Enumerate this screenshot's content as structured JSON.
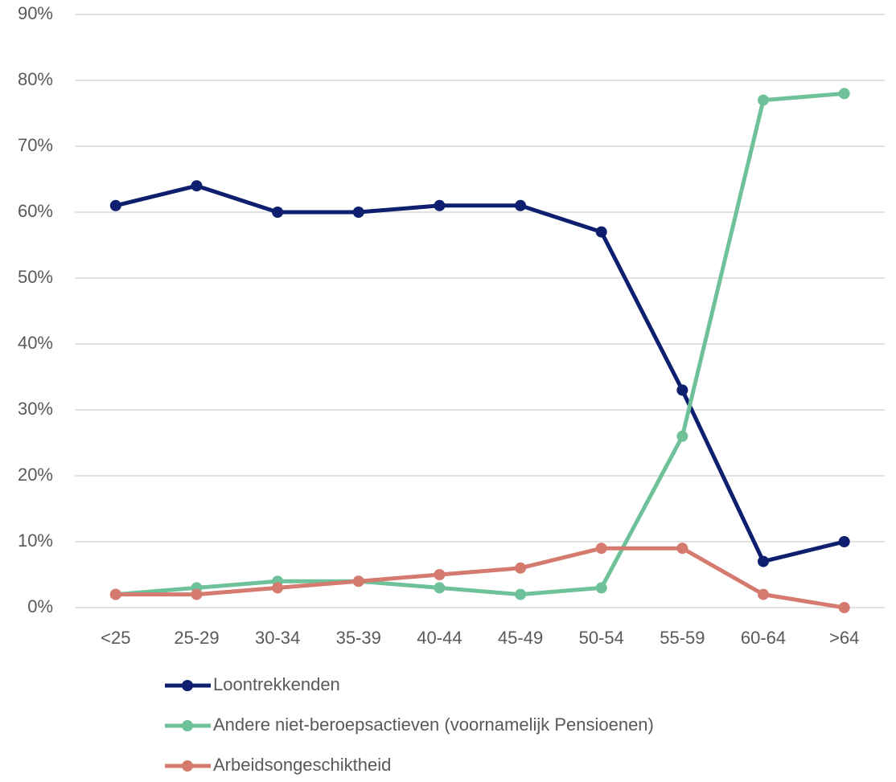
{
  "chart_data": {
    "type": "line",
    "categories": [
      "<25",
      "25-29",
      "30-34",
      "35-39",
      "40-44",
      "45-49",
      "50-54",
      "55-59",
      "60-64",
      ">64"
    ],
    "series": [
      {
        "name": "Loontrekkenden",
        "color": "#0d1f6e",
        "values": [
          61,
          64,
          60,
          60,
          61,
          61,
          57,
          33,
          7,
          10
        ]
      },
      {
        "name": "Andere niet-beroepsactieven (voornamelijk Pensioenen)",
        "color": "#6fc19a",
        "values": [
          2,
          3,
          4,
          4,
          3,
          2,
          3,
          26,
          77,
          78
        ]
      },
      {
        "name": "Arbeidsongeschiktheid",
        "color": "#d57a6e",
        "values": [
          2,
          2,
          3,
          4,
          5,
          6,
          9,
          9,
          2,
          0
        ]
      }
    ],
    "ylim": [
      0,
      90
    ],
    "yticks": [
      {
        "value": 0,
        "label": "0%"
      },
      {
        "value": 10,
        "label": "10%"
      },
      {
        "value": 20,
        "label": "20%"
      },
      {
        "value": 30,
        "label": "30%"
      },
      {
        "value": 40,
        "label": "40%"
      },
      {
        "value": 50,
        "label": "50%"
      },
      {
        "value": 60,
        "label": "60%"
      },
      {
        "value": 70,
        "label": "70%"
      },
      {
        "value": 80,
        "label": "80%"
      },
      {
        "value": 90,
        "label": "90%"
      }
    ],
    "grid": true,
    "legend": "bottom"
  }
}
